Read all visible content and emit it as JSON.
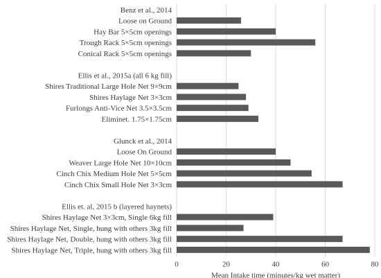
{
  "chart_data": {
    "type": "bar",
    "orientation": "horizontal",
    "categories": [
      "Benz et al., 2014",
      "Loose on Ground",
      "Hay Bar 5×5cm openings",
      "Trough Rack 5×5cm openings",
      "Conical Rack 5×5cm openings",
      "",
      "Ellis et al., 2015a (all 6 kg fill)",
      "Shires Traditional Large Hole Net 9×9cm",
      "Shires Haylage Net 3×3cm",
      "Furlongs Anti-Vice Net 3.5×3.5cm",
      "Eliminet. 1.75×1.75cm",
      "",
      "Glunck et al., 2014",
      "Loose On Ground",
      "Weaver Large Hole Net 10×10cm",
      "Cinch Chix Medium Hole Net 5×5cm",
      "Cinch Chix Small Hole Net 3×3cm",
      "",
      "Ellis et. al, 2015 b (layered haynets)",
      "Shires Haylage Net 3×3cm, Single 6kg fill",
      "Shires Haylage Net, Single, hung with others 3kg fill",
      "Shires Haylage Net, Double, hung with others 3kg fill",
      "Shires Haylage Net, Triple, hung with others 3kg fill"
    ],
    "values": [
      null,
      26,
      40,
      56,
      30,
      null,
      null,
      25,
      28,
      29,
      33,
      null,
      null,
      40,
      46,
      54.5,
      67,
      null,
      null,
      39,
      27,
      67,
      78
    ],
    "xlabel": "Mean Intake time (minutes/kg wet matter)",
    "xlim": [
      0,
      80
    ],
    "xticks": [
      "0",
      "20",
      "40",
      "60",
      "80"
    ],
    "grid": "vertical",
    "legend": "none",
    "colors": {
      "bar": "#595959",
      "grid": "#d9d9d9",
      "text": "#3a3a3a"
    }
  }
}
